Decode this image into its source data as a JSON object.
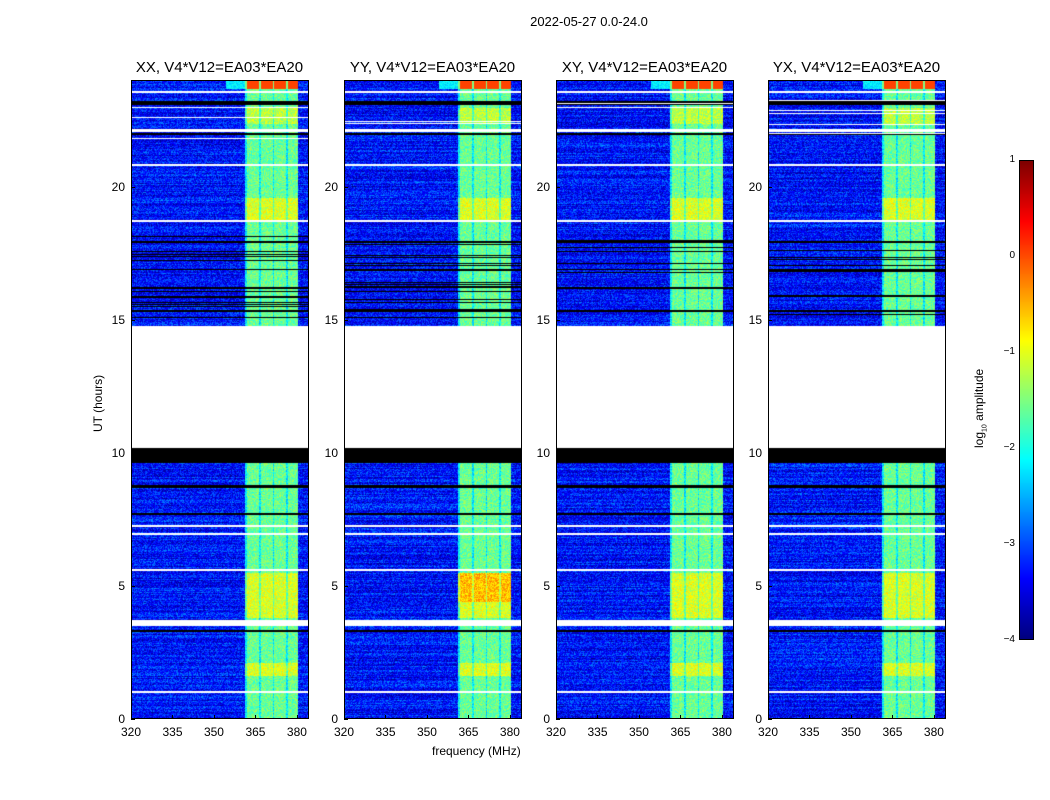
{
  "chart_data": {
    "type": "heatmap",
    "suptitle": "2022-05-27 0.0-24.0",
    "panels": [
      {
        "title": "XX, V4*V12=EA03*EA20"
      },
      {
        "title": "YY, V4*V12=EA03*EA20"
      },
      {
        "title": "XY, V4*V12=EA03*EA20"
      },
      {
        "title": "YX, V4*V12=EA03*EA20"
      }
    ],
    "xlabel": "frequency (MHz)",
    "ylabel": "UT (hours)",
    "xlim": [
      320,
      384
    ],
    "ylim": [
      0,
      24
    ],
    "xticks": [
      "320",
      "335",
      "350",
      "365",
      "380"
    ],
    "yticks": [
      "0",
      "5",
      "10",
      "15",
      "20"
    ],
    "xtick_values": [
      320,
      335,
      350,
      365,
      380
    ],
    "ytick_values": [
      0,
      5,
      10,
      15,
      20
    ],
    "colormap": "jet",
    "colorbar": {
      "label": "log10 amplitude",
      "label_main": "log",
      "label_sub": "10",
      "label_rest": " amplitude",
      "range": [
        -4,
        1
      ],
      "ticks": [
        "1",
        "0",
        "−1",
        "−2",
        "−3",
        "−4"
      ],
      "tick_values": [
        1,
        0,
        -1,
        -2,
        -3,
        -4
      ]
    },
    "background_level": -3.3,
    "rfi_band_mhz": [
      361,
      380
    ],
    "rfi_band_level": -1.6,
    "flagged_white_hours": [
      [
        10.2,
        14.8
      ],
      [
        23.55,
        23.65
      ],
      [
        22.1,
        22.2
      ],
      [
        20.8,
        20.9
      ],
      [
        18.7,
        18.8
      ],
      [
        3.5,
        3.7
      ],
      [
        5.55,
        5.62
      ],
      [
        0.95,
        1.05
      ],
      [
        7.2,
        7.3
      ],
      [
        6.9,
        7.0
      ]
    ],
    "missing_black_hours": [
      [
        9.64,
        10.2
      ],
      [
        23.1,
        23.25
      ],
      [
        22.0,
        22.05
      ],
      [
        17.9,
        18.0
      ],
      [
        16.9,
        16.95
      ],
      [
        15.3,
        15.4
      ],
      [
        7.65,
        7.75
      ],
      [
        3.25,
        3.35
      ],
      [
        8.7,
        8.78
      ]
    ]
  }
}
